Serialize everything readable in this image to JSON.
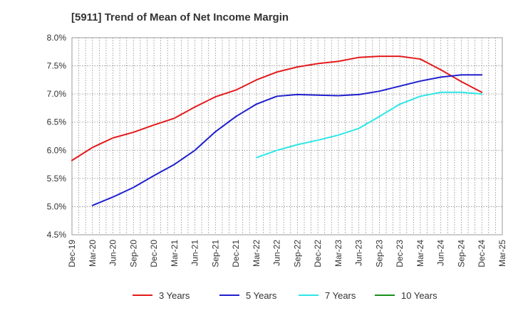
{
  "chart_data": {
    "type": "line",
    "title": "[5911]  Trend of Mean of Net Income Margin",
    "xlabel": "",
    "ylabel": "",
    "ylim": [
      4.5,
      8.0
    ],
    "ytick_values": [
      4.5,
      5.0,
      5.5,
      6.0,
      6.5,
      7.0,
      7.5,
      8.0
    ],
    "ytick_labels": [
      "4.5%",
      "5.0%",
      "5.5%",
      "6.0%",
      "6.5%",
      "7.0%",
      "7.5%",
      "8.0%"
    ],
    "xtick_labels": [
      "Dec-19",
      "Mar-20",
      "Jun-20",
      "Sep-20",
      "Dec-20",
      "Mar-21",
      "Jun-21",
      "Sep-21",
      "Dec-21",
      "Mar-22",
      "Jun-22",
      "Sep-22",
      "Dec-22",
      "Mar-23",
      "Jun-23",
      "Sep-23",
      "Dec-23",
      "Mar-24",
      "Jun-24",
      "Sep-24",
      "Dec-24",
      "Mar-25"
    ],
    "grid": true,
    "legend_position": "bottom",
    "series": [
      {
        "name": "3 Years",
        "color": "#e31a1c",
        "x": [
          "Dec-19",
          "Mar-20",
          "Jun-20",
          "Sep-20",
          "Dec-20",
          "Mar-21",
          "Jun-21",
          "Sep-21",
          "Dec-21",
          "Mar-22",
          "Jun-22",
          "Sep-22",
          "Dec-22",
          "Mar-23",
          "Jun-23",
          "Sep-23",
          "Dec-23",
          "Mar-24",
          "Jun-24",
          "Sep-24",
          "Dec-24"
        ],
        "values": [
          5.82,
          6.05,
          6.22,
          6.32,
          6.45,
          6.57,
          6.77,
          6.95,
          7.07,
          7.25,
          7.39,
          7.48,
          7.54,
          7.58,
          7.65,
          7.67,
          7.67,
          7.62,
          7.43,
          7.22,
          7.03
        ]
      },
      {
        "name": "5 Years",
        "color": "#1f1fcf",
        "x": [
          "Mar-20",
          "Jun-20",
          "Sep-20",
          "Dec-20",
          "Mar-21",
          "Jun-21",
          "Sep-21",
          "Dec-21",
          "Mar-22",
          "Jun-22",
          "Sep-22",
          "Dec-22",
          "Mar-23",
          "Jun-23",
          "Sep-23",
          "Dec-23",
          "Mar-24",
          "Jun-24",
          "Sep-24",
          "Dec-24"
        ],
        "values": [
          5.02,
          5.17,
          5.34,
          5.55,
          5.75,
          6.0,
          6.33,
          6.6,
          6.82,
          6.96,
          6.99,
          6.98,
          6.97,
          6.99,
          7.05,
          7.14,
          7.23,
          7.3,
          7.34,
          7.34
        ]
      },
      {
        "name": "7 Years",
        "color": "#2ee6e6",
        "x": [
          "Mar-22",
          "Jun-22",
          "Sep-22",
          "Dec-22",
          "Mar-23",
          "Jun-23",
          "Sep-23",
          "Dec-23",
          "Mar-24",
          "Jun-24",
          "Sep-24",
          "Dec-24"
        ],
        "values": [
          5.87,
          6.0,
          6.1,
          6.18,
          6.27,
          6.39,
          6.6,
          6.82,
          6.96,
          7.03,
          7.03,
          7.0
        ]
      },
      {
        "name": "10 Years",
        "color": "#1a8f1a",
        "x": [],
        "values": []
      }
    ]
  }
}
